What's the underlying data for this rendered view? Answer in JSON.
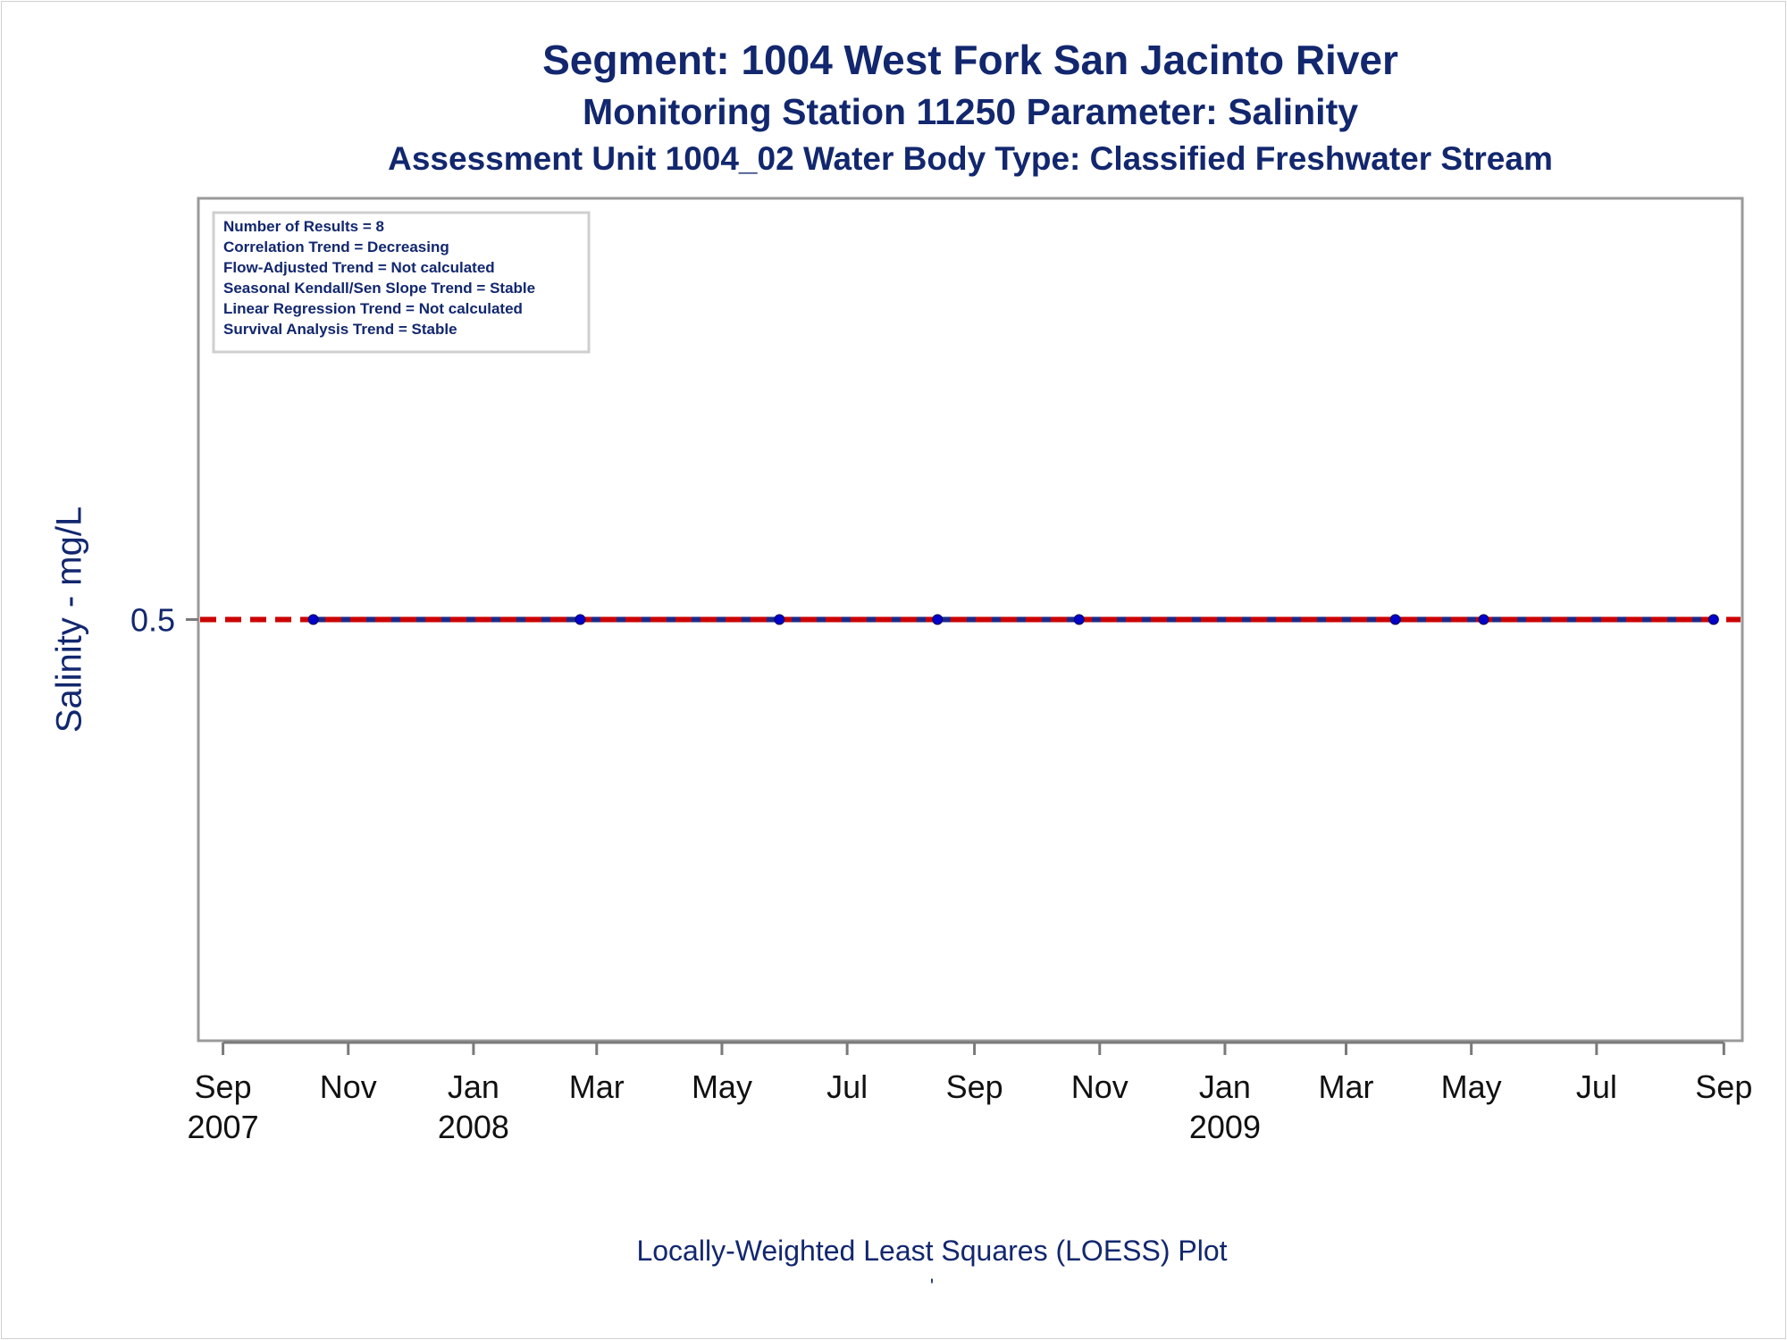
{
  "chart_data": {
    "type": "line",
    "title": "Segment: 1004  West Fork San Jacinto River",
    "subtitle": "Monitoring Station 11250 Parameter: Salinity",
    "subtitle2": "Assessment Unit 1004_02   Water Body Type: Classified Freshwater Stream",
    "ylabel": "Salinity - mg/L",
    "footnote": "Locally-Weighted Least Squares (LOESS) Plot",
    "footnote_mark": "'",
    "xlim": [
      "2007-08-20",
      "2009-09-10"
    ],
    "ylim": [
      0.0,
      1.0
    ],
    "y_ticks": [
      {
        "value": 0.5,
        "label": "0.5"
      }
    ],
    "x_ticks": [
      {
        "date": "2007-09-01",
        "label": "Sep",
        "year": "2007"
      },
      {
        "date": "2007-11-01",
        "label": "Nov",
        "year": ""
      },
      {
        "date": "2008-01-01",
        "label": "Jan",
        "year": "2008"
      },
      {
        "date": "2008-03-01",
        "label": "Mar",
        "year": ""
      },
      {
        "date": "2008-05-01",
        "label": "May",
        "year": ""
      },
      {
        "date": "2008-07-01",
        "label": "Jul",
        "year": ""
      },
      {
        "date": "2008-09-01",
        "label": "Sep",
        "year": ""
      },
      {
        "date": "2008-11-01",
        "label": "Nov",
        "year": ""
      },
      {
        "date": "2009-01-01",
        "label": "Jan",
        "year": "2009"
      },
      {
        "date": "2009-03-01",
        "label": "Mar",
        "year": ""
      },
      {
        "date": "2009-05-01",
        "label": "May",
        "year": ""
      },
      {
        "date": "2009-07-01",
        "label": "Jul",
        "year": ""
      },
      {
        "date": "2009-09-01",
        "label": "Sep",
        "year": ""
      }
    ],
    "series": [
      {
        "type": "scatter+line",
        "color": "#0000cc",
        "line_color": "#1a2a8a",
        "points": [
          {
            "x": "2007-10-15",
            "y": 0.5
          },
          {
            "x": "2008-02-22",
            "y": 0.5
          },
          {
            "x": "2008-05-29",
            "y": 0.5
          },
          {
            "x": "2008-08-14",
            "y": 0.5
          },
          {
            "x": "2008-10-22",
            "y": 0.5
          },
          {
            "x": "2009-03-25",
            "y": 0.5
          },
          {
            "x": "2009-05-07",
            "y": 0.5
          },
          {
            "x": "2009-08-27",
            "y": 0.5
          }
        ]
      },
      {
        "type": "reference-line",
        "color": "#cc0000",
        "style": "dashed",
        "y": 0.5
      }
    ],
    "legend_box": {
      "position": "top-left",
      "lines": [
        "Number of Results = 8",
        "Correlation Trend = Decreasing",
        "Flow-Adjusted Trend = Not calculated",
        "Seasonal Kendall/Sen Slope Trend = Stable",
        "Linear Regression Trend = Not calculated",
        "Survival Analysis Trend = Stable"
      ]
    },
    "grid": false
  },
  "colors": {
    "text": "#12276e",
    "axis": "#9a9a9a",
    "points": "#0000cc",
    "reference": "#cc0000"
  }
}
